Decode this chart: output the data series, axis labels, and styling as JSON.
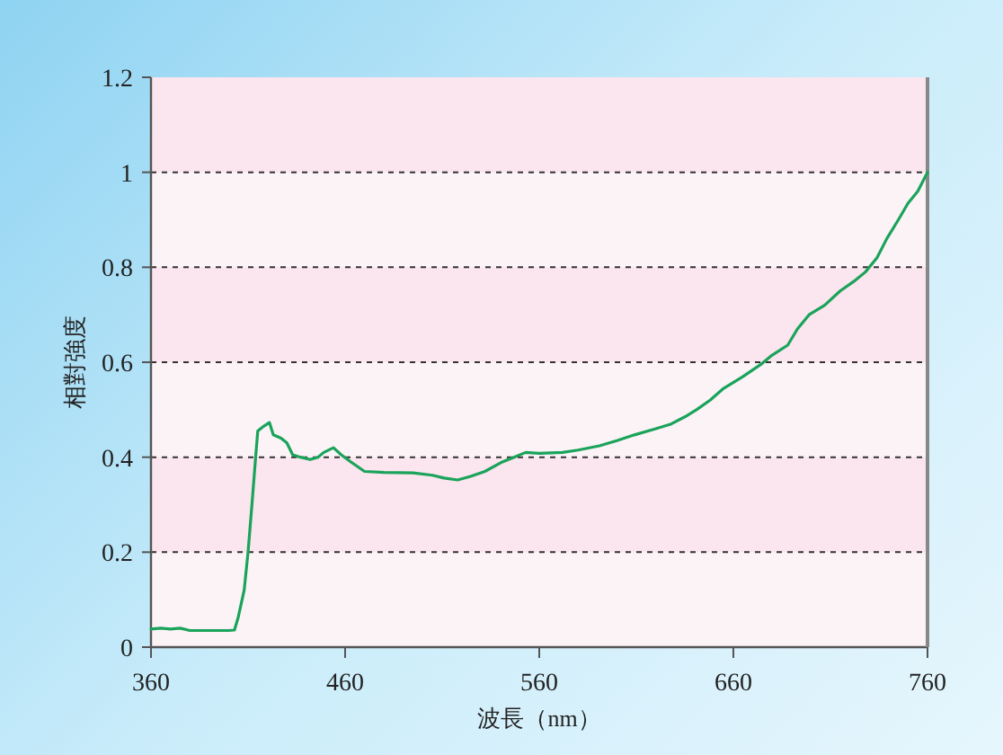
{
  "chart_data": {
    "type": "line",
    "xlabel": "波長（nm）",
    "ylabel": "相對強度",
    "xlim": [
      360,
      760
    ],
    "xticks": [
      360,
      460,
      560,
      660,
      760
    ],
    "ylim": [
      0,
      1.2
    ],
    "yticks": [
      0,
      0.2,
      0.4,
      0.6,
      0.8,
      1,
      1.2
    ],
    "grid": "y",
    "marker": "none",
    "line_style": "solid",
    "series": [
      {
        "color": "#1aa35a",
        "x": [
          360,
          365,
          370,
          375,
          380,
          390,
          400,
          403,
          405,
          408,
          410,
          412,
          414,
          415,
          418,
          421,
          423,
          427,
          430,
          433,
          437,
          442,
          446,
          449,
          454,
          458,
          463,
          470,
          480,
          495,
          505,
          511,
          518,
          525,
          532,
          541,
          547,
          553,
          560,
          572,
          580,
          591,
          600,
          609,
          620,
          628,
          635,
          641,
          648,
          655,
          665,
          674,
          680,
          688,
          693,
          699,
          707,
          715,
          722,
          728,
          734,
          739,
          745,
          750,
          755,
          760
        ],
        "values": [
          0.038,
          0.04,
          0.038,
          0.04,
          0.035,
          0.035,
          0.035,
          0.036,
          0.064,
          0.12,
          0.2,
          0.3,
          0.405,
          0.455,
          0.465,
          0.473,
          0.447,
          0.44,
          0.43,
          0.405,
          0.4,
          0.395,
          0.4,
          0.41,
          0.42,
          0.405,
          0.39,
          0.37,
          0.368,
          0.367,
          0.362,
          0.356,
          0.352,
          0.36,
          0.37,
          0.39,
          0.4,
          0.41,
          0.408,
          0.41,
          0.415,
          0.424,
          0.435,
          0.447,
          0.46,
          0.47,
          0.485,
          0.5,
          0.52,
          0.545,
          0.57,
          0.595,
          0.615,
          0.636,
          0.67,
          0.7,
          0.72,
          0.75,
          0.77,
          0.79,
          0.82,
          0.86,
          0.9,
          0.935,
          0.96,
          1.0
        ]
      }
    ]
  }
}
